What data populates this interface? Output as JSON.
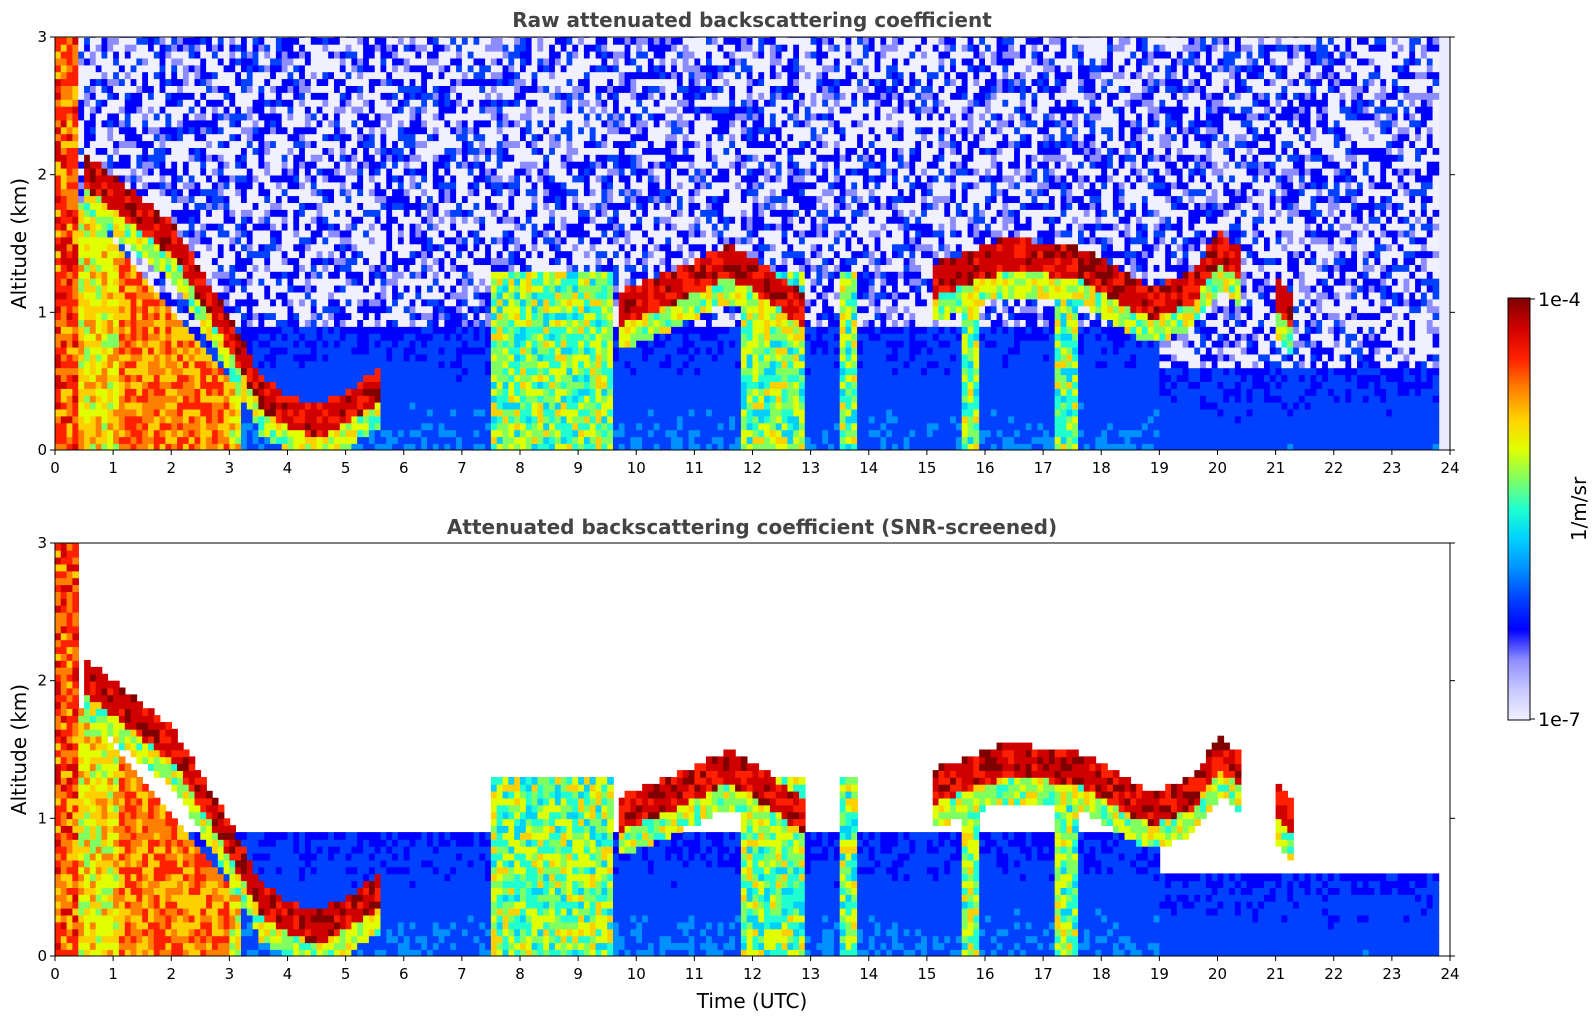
{
  "chart_data": [
    {
      "type": "heatmap",
      "title": "Raw attenuated backscattering coefficient",
      "xlabel": "",
      "ylabel": "Altitude (km)",
      "xlim": [
        0,
        24
      ],
      "ylim": [
        0,
        3
      ],
      "x_ticks": [
        "0",
        "1",
        "2",
        "3",
        "4",
        "5",
        "6",
        "7",
        "8",
        "9",
        "10",
        "11",
        "12",
        "13",
        "14",
        "15",
        "16",
        "17",
        "18",
        "19",
        "20",
        "21",
        "22",
        "23",
        "24"
      ],
      "y_ticks": [
        "0",
        "1",
        "2",
        "3"
      ],
      "color_scale": "log10",
      "screened": false,
      "cloud_layers": [
        {
          "t": [
            0.5,
            2.0,
            3.0,
            3.5,
            4.0,
            4.5,
            5.0,
            5.5
          ],
          "alt": [
            2.0,
            1.5,
            0.8,
            0.4,
            0.25,
            0.2,
            0.3,
            0.45
          ]
        },
        {
          "t": [
            9.6,
            10.5,
            11.5,
            12.0,
            12.8
          ],
          "alt": [
            1.0,
            1.15,
            1.35,
            1.25,
            1.0
          ]
        },
        {
          "t": [
            15.0,
            16.3,
            17.5,
            18.8,
            19.5,
            20.0,
            20.4
          ],
          "alt": [
            1.2,
            1.4,
            1.35,
            1.05,
            1.15,
            1.45,
            1.3
          ]
        },
        {
          "t": [
            21.0,
            21.3
          ],
          "alt": [
            1.1,
            0.95
          ]
        }
      ]
    },
    {
      "type": "heatmap",
      "title": "Attenuated backscattering coefficient (SNR-screened)",
      "xlabel": "Time (UTC)",
      "ylabel": "Altitude (km)",
      "xlim": [
        0,
        24
      ],
      "ylim": [
        0,
        3
      ],
      "x_ticks": [
        "0",
        "1",
        "2",
        "3",
        "4",
        "5",
        "6",
        "7",
        "8",
        "9",
        "10",
        "11",
        "12",
        "13",
        "14",
        "15",
        "16",
        "17",
        "18",
        "19",
        "20",
        "21",
        "22",
        "23",
        "24"
      ],
      "y_ticks": [
        "0",
        "1",
        "2",
        "3"
      ],
      "color_scale": "log10",
      "screened": true
    }
  ],
  "colorbar": {
    "label": "1/m/sr",
    "max_label": "1e-4",
    "min_label": "1e-7",
    "range": [
      1e-07,
      0.0001
    ],
    "colors": [
      "#f0f0ff",
      "#c8c8ff",
      "#8c8cff",
      "#0000ff",
      "#0040ff",
      "#0090ff",
      "#00d0ff",
      "#20ffd0",
      "#80ff60",
      "#e0ff00",
      "#ffd000",
      "#ff8000",
      "#ff2000",
      "#d00000",
      "#800000"
    ]
  }
}
